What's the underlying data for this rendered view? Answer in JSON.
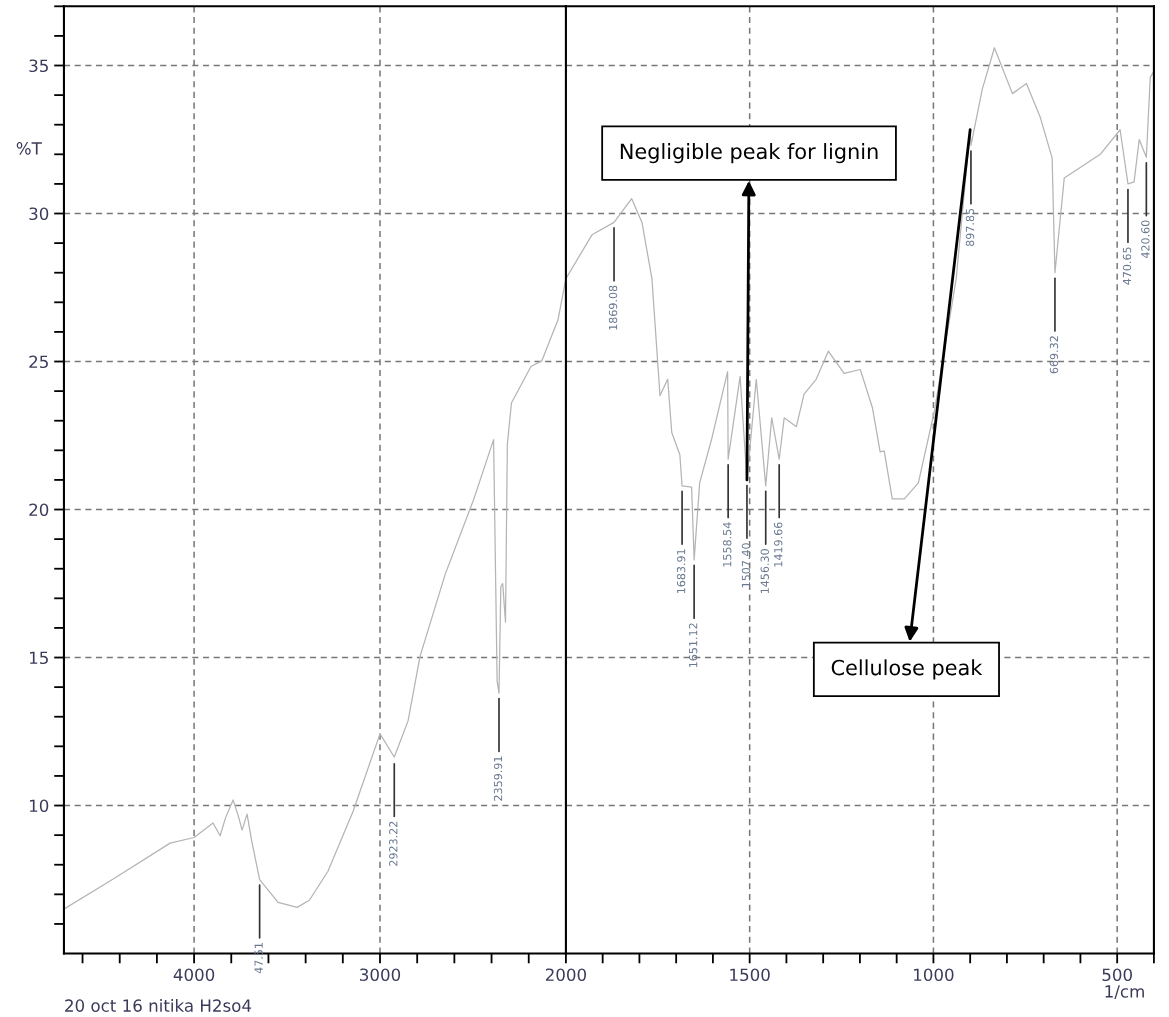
{
  "chart_data": [
    {
      "type": "line",
      "ylabel": "%T",
      "xlim": [
        4700,
        2000
      ],
      "ylim": [
        5,
        37
      ],
      "grid": true,
      "line_style": "solid",
      "marker": "none",
      "xticks": [
        {
          "value": 4600,
          "label": null
        },
        {
          "value": 4400,
          "label": null
        },
        {
          "value": 4200,
          "label": null
        },
        4000,
        {
          "value": 3800,
          "label": null
        },
        {
          "value": 3600,
          "label": null
        },
        {
          "value": 3400,
          "label": null
        },
        {
          "value": 3200,
          "label": null
        },
        3000,
        {
          "value": 2800,
          "label": null
        },
        {
          "value": 2600,
          "label": null
        },
        {
          "value": 2400,
          "label": null
        },
        {
          "value": 2200,
          "label": null
        }
      ],
      "yticks": [
        {
          "value": 6,
          "label": null
        },
        {
          "value": 7,
          "label": null
        },
        {
          "value": 8,
          "label": null
        },
        {
          "value": 9,
          "label": null
        },
        10,
        {
          "value": 11,
          "label": null
        },
        {
          "value": 12,
          "label": null
        },
        {
          "value": 13,
          "label": null
        },
        {
          "value": 14,
          "label": null
        },
        15,
        {
          "value": 16,
          "label": null
        },
        {
          "value": 17,
          "label": null
        },
        {
          "value": 18,
          "label": null
        },
        {
          "value": 19,
          "label": null
        },
        20,
        {
          "value": 21,
          "label": null
        },
        {
          "value": 22,
          "label": null
        },
        {
          "value": 23,
          "label": null
        },
        {
          "value": 24,
          "label": null
        },
        25,
        {
          "value": 26,
          "label": null
        },
        {
          "value": 27,
          "label": null
        },
        {
          "value": 28,
          "label": null
        },
        {
          "value": 29,
          "label": null
        },
        30,
        {
          "value": 31,
          "label": null
        },
        {
          "value": 32,
          "label": null
        },
        {
          "value": 33,
          "label": null
        },
        {
          "value": 34,
          "label": null
        },
        35,
        {
          "value": 36,
          "label": null
        },
        {
          "value": 37,
          "label": null
        }
      ],
      "series": [
        {
          "color": "#b4b4b4",
          "x": [
            4700,
            4435,
            4129,
            4000,
            3898,
            3860,
            3830,
            3790,
            3760,
            3742,
            3715,
            3690,
            3647.51,
            3548,
            3446,
            3380,
            3280,
            3145,
            3000,
            2923.22,
            2849,
            2785,
            2650,
            2495,
            2389,
            2370,
            2359.91,
            2350,
            2340,
            2325,
            2315,
            2293,
            2188,
            2130,
            2043,
            2000
          ],
          "values": [
            6.5,
            7.52,
            8.73,
            8.92,
            9.41,
            8.98,
            9.6,
            10.19,
            9.6,
            9.17,
            9.71,
            8.8,
            7.5,
            6.73,
            6.56,
            6.8,
            7.78,
            9.8,
            12.42,
            11.64,
            12.86,
            15.03,
            17.8,
            20.36,
            22.36,
            14.2,
            13.8,
            17.4,
            17.5,
            16.2,
            22.2,
            23.6,
            24.83,
            25.02,
            26.4,
            27.8
          ]
        }
      ],
      "annotations": [
        "20 oct 16 nitika H2so4",
        {
          "text": "47.51",
          "x": 3647.51,
          "y": 7.5
        },
        {
          "text": "2923.22",
          "x": 2923.22,
          "y": 11.6
        },
        {
          "text": "2359.91",
          "x": 2359.91,
          "y": 13.8
        }
      ]
    },
    {
      "type": "line",
      "xlabel": "1/cm",
      "xlim": [
        2000,
        400
      ],
      "ylim": [
        5,
        37
      ],
      "grid": true,
      "line_style": "solid",
      "marker": "none",
      "tick_labels": "x",
      "xticks": [
        2000,
        {
          "value": 1900,
          "label": null
        },
        {
          "value": 1800,
          "label": null
        },
        {
          "value": 1700,
          "label": null
        },
        {
          "value": 1600,
          "label": null
        },
        1500,
        {
          "value": 1400,
          "label": null
        },
        {
          "value": 1300,
          "label": null
        },
        {
          "value": 1200,
          "label": null
        },
        {
          "value": 1100,
          "label": null
        },
        1000,
        {
          "value": 900,
          "label": null
        },
        {
          "value": 800,
          "label": null
        },
        {
          "value": 700,
          "label": null
        },
        {
          "value": 600,
          "label": null
        },
        500,
        {
          "value": 400,
          "label": null
        }
      ],
      "yticks": [
        10,
        15,
        20,
        25,
        30,
        35
      ],
      "series": [
        {
          "color": "#b4b4b4",
          "x": [
            2000,
            1929,
            1869.08,
            1821,
            1793,
            1766,
            1744,
            1723,
            1712,
            1690,
            1683.91,
            1658,
            1651.12,
            1636,
            1603,
            1560,
            1558.54,
            1526,
            1507.4,
            1482,
            1456.3,
            1440,
            1419.66,
            1406,
            1373,
            1352,
            1319,
            1286,
            1243,
            1199,
            1166,
            1145,
            1134,
            1112,
            1079,
            1041,
            997,
            938,
            900,
            897.85,
            867,
            834,
            785,
            747,
            709,
            677,
            669.32,
            644,
            611,
            546,
            492,
            470.65,
            454,
            440,
            420.6,
            410,
            400
          ],
          "values": [
            27.8,
            29.28,
            29.7,
            30.5,
            29.7,
            27.8,
            23.85,
            24.4,
            22.6,
            21.85,
            20.8,
            20.76,
            18.3,
            20.9,
            22.4,
            24.66,
            21.7,
            24.5,
            21.0,
            24.4,
            20.8,
            23.1,
            21.7,
            23.1,
            22.8,
            23.9,
            24.4,
            25.35,
            24.6,
            24.73,
            23.44,
            21.95,
            21.98,
            20.36,
            20.36,
            20.9,
            23.34,
            27.8,
            32.83,
            32.3,
            34.2,
            35.6,
            34.05,
            34.39,
            33.24,
            31.88,
            28.0,
            31.2,
            31.47,
            32.0,
            32.83,
            31.0,
            31.07,
            32.5,
            31.9,
            34.6,
            34.8
          ]
        }
      ],
      "annotations": [
        {
          "text": "1869.08",
          "x": 1869.08,
          "y": 29.7
        },
        {
          "text": "1683.91",
          "x": 1683.91,
          "y": 20.8
        },
        {
          "text": "1651.12",
          "x": 1651.12,
          "y": 18.3
        },
        {
          "text": "1558.54",
          "x": 1558.54,
          "y": 21.7
        },
        {
          "text": "1507.40",
          "x": 1507.4,
          "y": 21.0
        },
        {
          "text": "1456.30",
          "x": 1456.3,
          "y": 20.8
        },
        {
          "text": "1419.66",
          "x": 1419.66,
          "y": 21.7
        },
        {
          "text": "897.85",
          "x": 897.85,
          "y": 32.3
        },
        {
          "text": "669.32",
          "x": 669.32,
          "y": 28.0
        },
        {
          "text": "470.65",
          "x": 470.65,
          "y": 31.0
        },
        {
          "text": "420.60",
          "x": 420.6,
          "y": 31.9
        },
        {
          "text": "Negligible peak for lignin",
          "x": 1507.4,
          "y": 21.0
        },
        {
          "text": "Cellulose peak",
          "x": 900,
          "y": 32.83
        }
      ]
    }
  ]
}
